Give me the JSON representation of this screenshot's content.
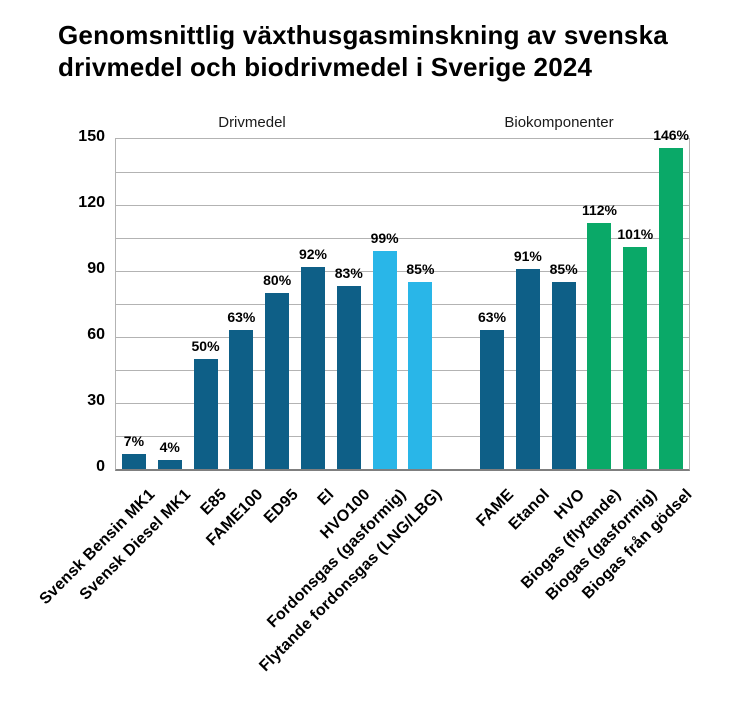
{
  "chart_data": {
    "type": "bar",
    "title": "Genomsnittlig växthusgasminskning av svenska drivmedel och biodrivmedel i Sverige 2024",
    "title_lines": [
      "Genomsnittlig växthusgasminskning av svenska",
      "drivmedel och biodrivmedel i Sverige 2024"
    ],
    "xlabel": "",
    "ylabel": "",
    "ylim": [
      0,
      150
    ],
    "y_tick_step": 30,
    "y_grid_step": 15,
    "grid": true,
    "legend": "none",
    "value_suffix": "%",
    "y_tick_labels": [
      "0",
      "30",
      "60",
      "90",
      "120",
      "150"
    ],
    "palette": {
      "drivmedel_dark_blue": "#0e5f87",
      "fordonsgas_light_blue": "#29b6e8",
      "biogas_green": "#0aa968",
      "gridline_gray": "#b3b3b3",
      "axis_gray": "#7f7f7f",
      "text_black": "#000000"
    },
    "groups": [
      {
        "label": "Drivmedel",
        "bars": [
          {
            "category": "Svensk Bensin MK1",
            "value": 7,
            "label": "7%",
            "color": "#0e5f87"
          },
          {
            "category": "Svensk Diesel MK1",
            "value": 4,
            "label": "4%",
            "color": "#0e5f87"
          },
          {
            "category": "E85",
            "value": 50,
            "label": "50%",
            "color": "#0e5f87"
          },
          {
            "category": "FAME100",
            "value": 63,
            "label": "63%",
            "color": "#0e5f87"
          },
          {
            "category": "ED95",
            "value": 80,
            "label": "80%",
            "color": "#0e5f87"
          },
          {
            "category": "El",
            "value": 92,
            "label": "92%",
            "color": "#0e5f87"
          },
          {
            "category": "HVO100",
            "value": 83,
            "label": "83%",
            "color": "#0e5f87"
          },
          {
            "category": "Fordonsgas (gasformig)",
            "value": 99,
            "label": "99%",
            "color": "#29b6e8"
          },
          {
            "category": "Flytande fordonsgas (LNG/LBG)",
            "value": 85,
            "label": "85%",
            "color": "#29b6e8"
          }
        ]
      },
      {
        "label": "Biokomponenter",
        "bars": [
          {
            "category": "FAME",
            "value": 63,
            "label": "63%",
            "color": "#0e5f87"
          },
          {
            "category": "Etanol",
            "value": 91,
            "label": "91%",
            "color": "#0e5f87"
          },
          {
            "category": "HVO",
            "value": 85,
            "label": "85%",
            "color": "#0e5f87"
          },
          {
            "category": "Biogas (flytande)",
            "value": 112,
            "label": "112%",
            "color": "#0aa968"
          },
          {
            "category": "Biogas (gasformig)",
            "value": 101,
            "label": "101%",
            "color": "#0aa968"
          },
          {
            "category": "Biogas från gödsel",
            "value": 146,
            "label": "146%",
            "color": "#0aa968"
          }
        ]
      }
    ]
  }
}
